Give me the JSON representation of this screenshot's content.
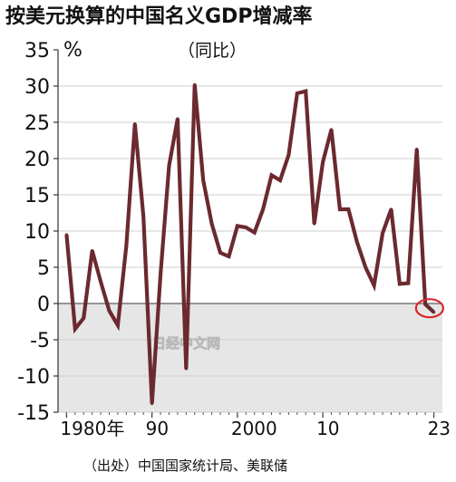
{
  "chart_data": {
    "type": "line",
    "title": "按美元换算的中国名义GDP增减率",
    "subtitle": "（同比）",
    "ylabel": "%",
    "source": "（出处）中国国家统计局、美联储",
    "watermark": "日经中文网",
    "ylim": [
      -15,
      35
    ],
    "yticks": [
      35,
      30,
      25,
      20,
      15,
      10,
      5,
      0,
      -5,
      -10,
      -15
    ],
    "xlim": [
      1979,
      2024
    ],
    "xticks": [
      {
        "value": 1980,
        "label": "1980年"
      },
      {
        "value": 1990,
        "label": "90"
      },
      {
        "value": 2000,
        "label": "2000"
      },
      {
        "value": 2010,
        "label": "10"
      },
      {
        "value": 2023,
        "label": "23"
      }
    ],
    "negative_region_shaded": true,
    "line_color": "#6b2a2f",
    "highlight_color": "#d9262c",
    "highlight_point": 2023,
    "x": [
      1980,
      1981,
      1982,
      1983,
      1984,
      1985,
      1986,
      1987,
      1988,
      1989,
      1990,
      1991,
      1992,
      1993,
      1994,
      1995,
      1996,
      1997,
      1998,
      1999,
      2000,
      2001,
      2002,
      2003,
      2004,
      2005,
      2006,
      2007,
      2008,
      2009,
      2010,
      2011,
      2012,
      2013,
      2014,
      2015,
      2016,
      2017,
      2018,
      2019,
      2020,
      2021,
      2022,
      2023
    ],
    "values": [
      9.5,
      -3.5,
      -2,
      7.3,
      3,
      -1,
      -3,
      8,
      24.8,
      12,
      -13.8,
      4,
      19,
      25.5,
      -9,
      30.2,
      17,
      11,
      7,
      6.5,
      10.7,
      10.5,
      9.8,
      13,
      17.7,
      17,
      20.5,
      29,
      29.3,
      11,
      19.5,
      24,
      13,
      13,
      8.5,
      5,
      2.5,
      9.7,
      13,
      2.7,
      2.8,
      21.3,
      -0.1,
      -1.2
    ]
  }
}
